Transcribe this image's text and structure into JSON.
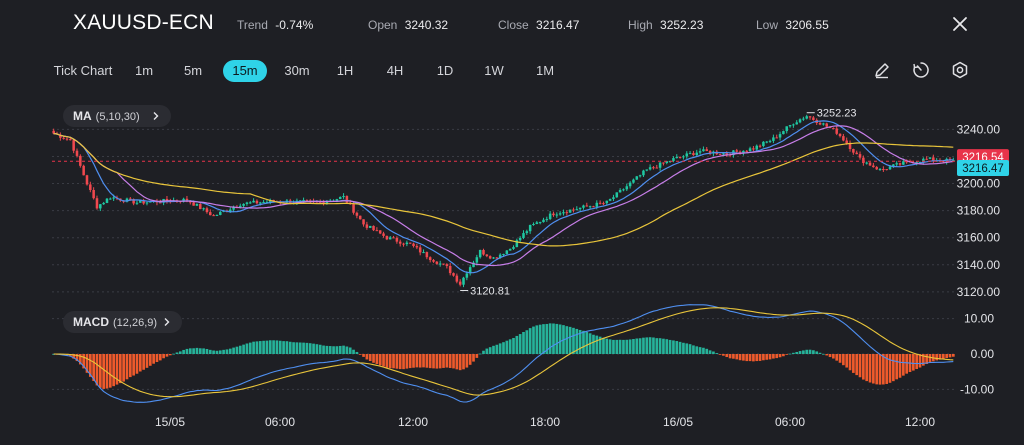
{
  "header": {
    "symbol": "XAUUSD-ECN",
    "trend_label": "Trend",
    "trend_value": "-0.74%",
    "open_label": "Open",
    "open_value": "3240.32",
    "close_label": "Close",
    "close_value": "3216.47",
    "high_label": "High",
    "high_value": "3252.23",
    "low_label": "Low",
    "low_value": "3206.55"
  },
  "timeframes": [
    "Tick Chart",
    "1m",
    "5m",
    "15m",
    "30m",
    "1H",
    "4H",
    "1D",
    "1W",
    "1M"
  ],
  "active_timeframe": "15m",
  "indicators": {
    "ma_name": "MA",
    "ma_params": "(5,10,30)",
    "macd_name": "MACD",
    "macd_params": "(12,26,9)"
  },
  "price_labels": {
    "ask": "3216.54",
    "bid": "3216.47",
    "high_marker": "3252.23",
    "low_marker": "3120.81"
  },
  "colors": {
    "up": "#1fc7a1",
    "down": "#f0484e",
    "ma5": "#4f8ff0",
    "ma10": "#c77ee8",
    "ma30": "#e9c53b",
    "macd_line": "#4f8ff0",
    "signal_line": "#e9c53b",
    "hist_up": "#26b39a",
    "hist_down": "#ef5a2c",
    "accent": "#2fd3e8",
    "ask_bg": "#e8344a",
    "bid_bg": "#2fd3e8"
  },
  "chart_data": {
    "type": "candlestick",
    "price_axis": {
      "ticks": [
        "3240.00",
        "3220.00",
        "3200.00",
        "3180.00",
        "3160.00",
        "3140.00",
        "3120.00"
      ],
      "ylim": [
        3114,
        3258
      ]
    },
    "macd_axis": {
      "ticks": [
        "10.00",
        "0.00",
        "-10.00"
      ],
      "ylim": [
        -13,
        13
      ]
    },
    "x_ticks": [
      "15/05",
      "06:00",
      "12:00",
      "18:00",
      "16/05",
      "06:00",
      "12:00"
    ],
    "close_path": [
      [
        0,
        3237
      ],
      [
        5,
        3232
      ],
      [
        10,
        3200
      ],
      [
        13,
        3183
      ],
      [
        17,
        3190
      ],
      [
        25,
        3186
      ],
      [
        40,
        3188
      ],
      [
        48,
        3176
      ],
      [
        56,
        3185
      ],
      [
        66,
        3187
      ],
      [
        80,
        3186
      ],
      [
        87,
        3190
      ],
      [
        93,
        3170
      ],
      [
        100,
        3160
      ],
      [
        107,
        3155
      ],
      [
        113,
        3145
      ],
      [
        118,
        3138
      ],
      [
        122,
        3126
      ],
      [
        124,
        3135
      ],
      [
        128,
        3150
      ],
      [
        132,
        3145
      ],
      [
        137,
        3152
      ],
      [
        143,
        3168
      ],
      [
        150,
        3178
      ],
      [
        158,
        3182
      ],
      [
        166,
        3186
      ],
      [
        172,
        3198
      ],
      [
        178,
        3210
      ],
      [
        186,
        3218
      ],
      [
        194,
        3224
      ],
      [
        202,
        3222
      ],
      [
        210,
        3226
      ],
      [
        216,
        3233
      ],
      [
        222,
        3245
      ],
      [
        226,
        3250
      ],
      [
        230,
        3245
      ],
      [
        235,
        3238
      ],
      [
        238,
        3230
      ],
      [
        242,
        3218
      ],
      [
        248,
        3210
      ],
      [
        255,
        3215
      ],
      [
        262,
        3218
      ],
      [
        270,
        3216.5
      ]
    ],
    "candle_count": 271
  }
}
